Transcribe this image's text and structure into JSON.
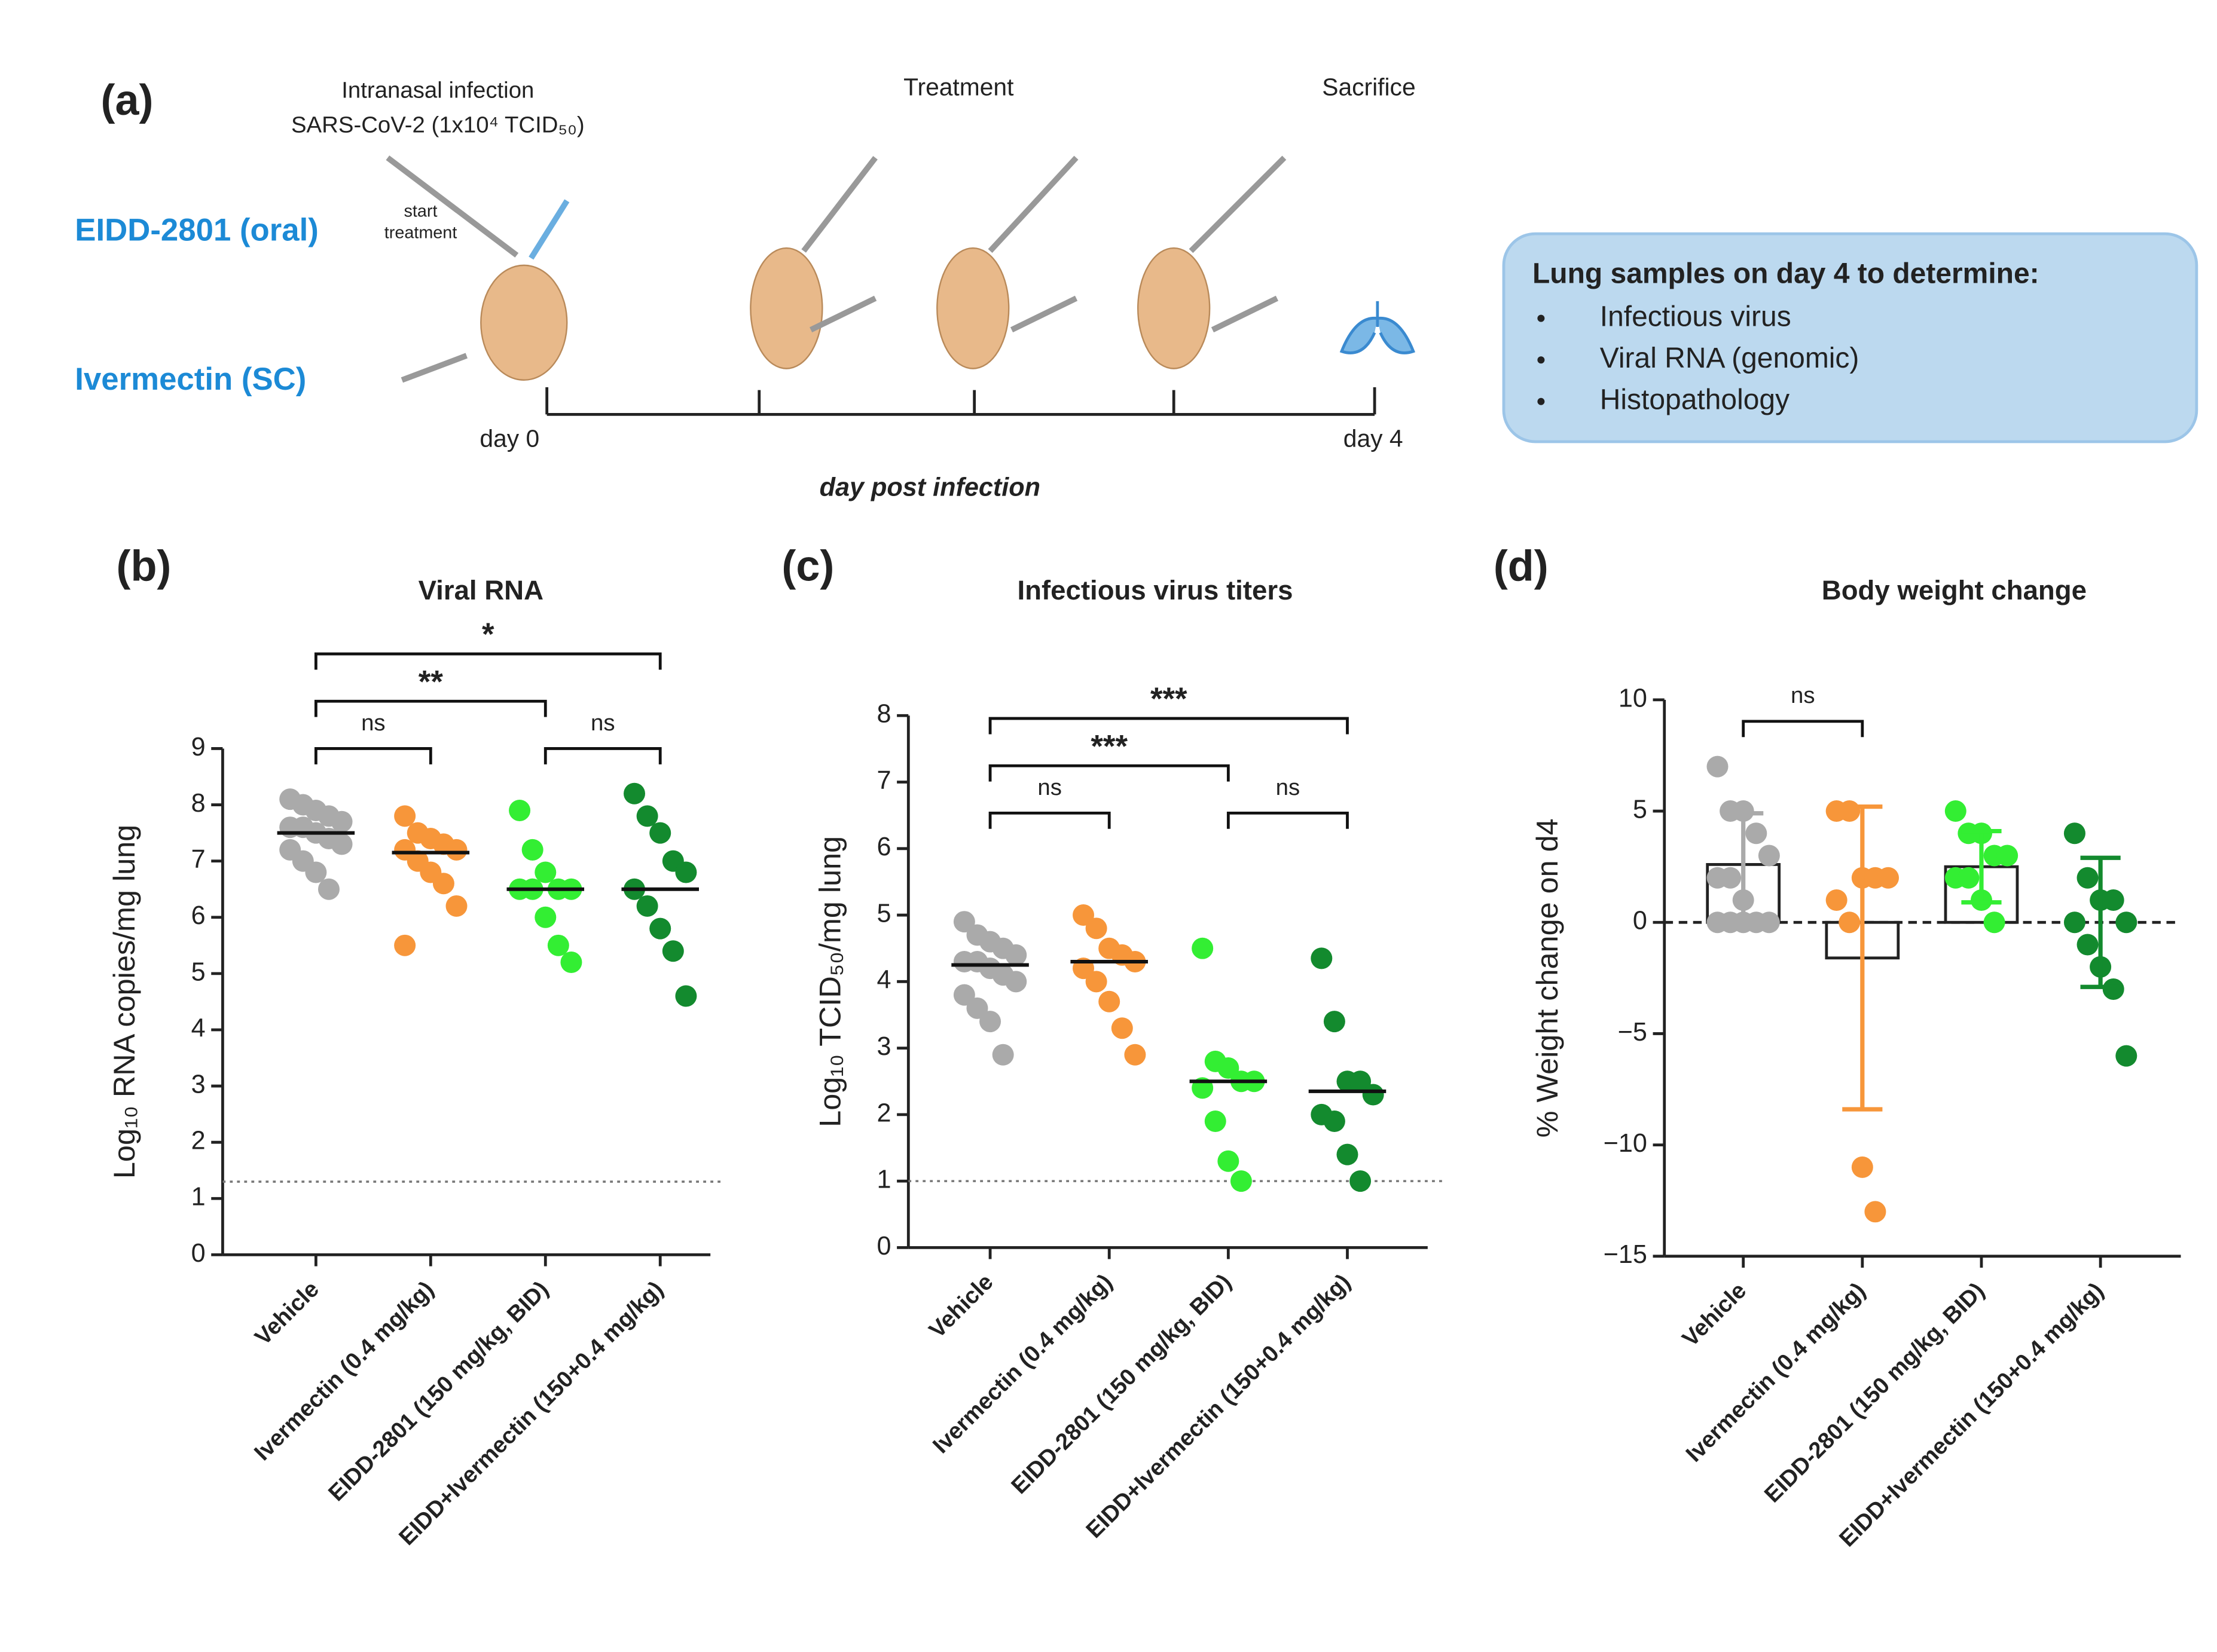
{
  "panel_a": {
    "label": "(a)",
    "infection": "Intranasal infection",
    "virus": "SARS-CoV-2 (1x10⁴ TCID₅₀)",
    "treatment": "Treatment",
    "sacrifice": "Sacrifice",
    "drug1": "EIDD-2801 (oral)",
    "start": [
      "start",
      "treatment"
    ],
    "drug2": "Ivermectin (SC)",
    "day_start": "day 0",
    "day_end": "day 4",
    "x_label": "day post infection",
    "box": {
      "title": "Lung samples on day 4 to determine:",
      "items": [
        "Infectious virus",
        "Viral RNA (genomic)",
        "Histopathology"
      ]
    }
  },
  "chart_data": [
    {
      "type": "strip",
      "panel": "(b)",
      "title": "Viral RNA",
      "y_label": "Log₁₀ RNA copies/mg lung",
      "categories": [
        "Vehicle",
        "Ivermectin (0.4 mg/kg)",
        "EIDD-2801 (150 mg/kg, BID)",
        "EIDD+Ivermectin (150+0.4 mg/kg)"
      ],
      "colors": [
        "#aaaaaa",
        "#f7963a",
        "#33ee33",
        "#138a2e"
      ],
      "points": [
        [
          8.1,
          8.0,
          7.9,
          7.8,
          7.7,
          7.6,
          7.6,
          7.5,
          7.4,
          7.3,
          7.2,
          7.0,
          6.8,
          6.5
        ],
        [
          7.8,
          7.5,
          7.4,
          7.3,
          7.2,
          7.2,
          7.0,
          6.8,
          6.6,
          6.2,
          5.5
        ],
        [
          7.9,
          7.2,
          6.8,
          6.5,
          6.5,
          6.5,
          6.5,
          6.0,
          5.5,
          5.2
        ],
        [
          8.2,
          7.8,
          7.5,
          7.0,
          6.8,
          6.5,
          6.2,
          5.8,
          5.4,
          4.6
        ]
      ],
      "medians": [
        7.5,
        7.15,
        6.5,
        6.5
      ],
      "lod": 1.3,
      "ylim": [
        0,
        9
      ],
      "yticks": [
        0,
        1,
        2,
        3,
        4,
        5,
        6,
        7,
        8,
        9
      ],
      "comparisons": [
        {
          "groups": [
            0,
            1
          ],
          "label": "ns"
        },
        {
          "groups": [
            2,
            3
          ],
          "label": "ns"
        },
        {
          "groups": [
            0,
            2
          ],
          "label": "**"
        },
        {
          "groups": [
            0,
            3
          ],
          "label": "*"
        }
      ]
    },
    {
      "type": "strip",
      "panel": "(c)",
      "title": "Infectious virus titers",
      "y_label": "Log₁₀ TCID₅₀/mg lung",
      "categories": [
        "Vehicle",
        "Ivermectin (0.4 mg/kg)",
        "EIDD-2801 (150 mg/kg, BID)",
        "EIDD+Ivermectin (150+0.4 mg/kg)"
      ],
      "colors": [
        "#aaaaaa",
        "#f7963a",
        "#33ee33",
        "#138a2e"
      ],
      "points": [
        [
          4.9,
          4.7,
          4.6,
          4.5,
          4.4,
          4.3,
          4.3,
          4.2,
          4.1,
          4.0,
          3.8,
          3.6,
          3.4,
          2.9
        ],
        [
          5.0,
          4.8,
          4.5,
          4.4,
          4.3,
          4.2,
          4.0,
          3.7,
          3.3,
          2.9
        ],
        [
          4.5,
          2.8,
          2.7,
          2.5,
          2.5,
          2.4,
          1.9,
          1.3,
          1.0
        ],
        [
          4.35,
          3.4,
          2.5,
          2.5,
          2.3,
          2.0,
          1.9,
          1.4,
          1.0
        ]
      ],
      "medians": [
        4.25,
        4.3,
        2.5,
        2.35
      ],
      "lod": 1,
      "ylim": [
        0,
        8
      ],
      "yticks": [
        0,
        1,
        2,
        3,
        4,
        5,
        6,
        7,
        8
      ],
      "comparisons": [
        {
          "groups": [
            0,
            1
          ],
          "label": "ns"
        },
        {
          "groups": [
            2,
            3
          ],
          "label": "ns"
        },
        {
          "groups": [
            0,
            2
          ],
          "label": "***"
        },
        {
          "groups": [
            0,
            3
          ],
          "label": "***"
        }
      ]
    },
    {
      "type": "bar_strip",
      "panel": "(d)",
      "title": "Body weight change",
      "y_label": "% Weight change on d4",
      "categories": [
        "Vehicle",
        "Ivermectin (0.4 mg/kg)",
        "EIDD-2801 (150 mg/kg, BID)",
        "EIDD+Ivermectin (150+0.4 mg/kg)"
      ],
      "colors": [
        "#aaaaaa",
        "#f7963a",
        "#33ee33",
        "#138a2e"
      ],
      "points": [
        [
          7,
          5,
          5,
          4,
          3,
          2,
          2,
          1,
          0,
          0,
          0,
          0,
          0
        ],
        [
          5,
          5,
          2,
          2,
          2,
          1,
          0,
          -11,
          -13
        ],
        [
          5,
          4,
          4,
          3,
          3,
          2,
          2,
          1,
          0
        ],
        [
          4,
          2,
          1,
          1,
          0,
          0,
          -1,
          -2,
          -3,
          -6
        ]
      ],
      "means": [
        2.6,
        -1.6,
        2.5,
        0
      ],
      "errors": [
        2.3,
        6.8,
        1.6,
        2.9
      ],
      "ylim": [
        -15,
        10
      ],
      "yticks": [
        {
          "value": -15,
          "label": "−15"
        },
        {
          "value": -10,
          "label": "−10"
        },
        {
          "value": -5,
          "label": "−5"
        },
        0,
        5,
        10
      ],
      "comparisons": [
        {
          "groups": [
            0,
            1
          ],
          "label": "ns"
        }
      ]
    }
  ]
}
